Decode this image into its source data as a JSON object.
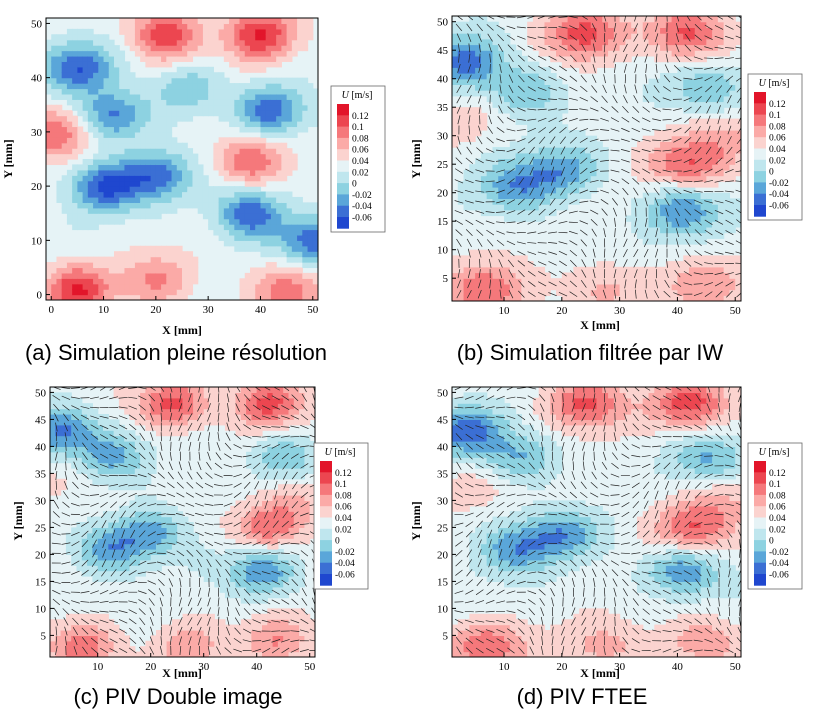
{
  "colorbar": {
    "title_italic": "U",
    "title_unit": " [m/s]",
    "levels": [
      "0.12",
      "0.1",
      "0.08",
      "0.06",
      "0.04",
      "0.02",
      "0",
      "-0.02",
      "-0.04",
      "-0.06"
    ],
    "colors": [
      "#e2152a",
      "#ec4650",
      "#f5787b",
      "#fbaaa7",
      "#fbd3cf",
      "#e6f3f6",
      "#bfe6ee",
      "#8dd2e1",
      "#5aa6d9",
      "#3b6fd4",
      "#1f47cf"
    ]
  },
  "chart_data": [
    {
      "type": "heatmap",
      "caption": "(a) Simulation pleine résolution",
      "xlabel": "X [mm]",
      "ylabel": "Y [mm]",
      "xlim": [
        -1,
        51
      ],
      "ylim": [
        -1,
        51
      ],
      "xticks": [
        "0",
        "10",
        "20",
        "30",
        "40",
        "50"
      ],
      "yticks": [
        "0",
        "10",
        "20",
        "30",
        "40",
        "50"
      ],
      "vectors": false,
      "features": [
        {
          "x": 22,
          "y": 48,
          "u": 0.12
        },
        {
          "x": 40,
          "y": 48,
          "u": 0.12
        },
        {
          "x": 5,
          "y": 1,
          "u": 0.12
        },
        {
          "x": 45,
          "y": 1,
          "u": 0.1
        },
        {
          "x": 38,
          "y": 25,
          "u": 0.1
        },
        {
          "x": 1,
          "y": 30,
          "u": 0.1
        },
        {
          "x": 20,
          "y": 3,
          "u": 0.08
        },
        {
          "x": 5,
          "y": 42,
          "u": -0.06
        },
        {
          "x": 12,
          "y": 33,
          "u": -0.05
        },
        {
          "x": 10,
          "y": 20,
          "u": -0.06
        },
        {
          "x": 20,
          "y": 22,
          "u": -0.05
        },
        {
          "x": 38,
          "y": 15,
          "u": -0.06
        },
        {
          "x": 50,
          "y": 10,
          "u": -0.05
        },
        {
          "x": 42,
          "y": 34,
          "u": -0.05
        },
        {
          "x": 26,
          "y": 38,
          "u": -0.02
        }
      ]
    },
    {
      "type": "heatmap",
      "caption": "(b) Simulation filtrée par IW",
      "xlabel": "X [mm]",
      "ylabel": "Y [mm]",
      "xlim": [
        1,
        51
      ],
      "ylim": [
        1,
        51
      ],
      "xticks": [
        "10",
        "20",
        "30",
        "40",
        "50"
      ],
      "yticks": [
        "5",
        "10",
        "15",
        "20",
        "25",
        "30",
        "35",
        "40",
        "45",
        "50"
      ],
      "vectors": true,
      "features": [
        {
          "x": 24,
          "y": 48,
          "u": 0.11
        },
        {
          "x": 42,
          "y": 48,
          "u": 0.11
        },
        {
          "x": 7,
          "y": 3,
          "u": 0.1
        },
        {
          "x": 27,
          "y": 3,
          "u": 0.07
        },
        {
          "x": 44,
          "y": 4,
          "u": 0.08
        },
        {
          "x": 42,
          "y": 25,
          "u": 0.1
        },
        {
          "x": 48,
          "y": 30,
          "u": 0.06
        },
        {
          "x": 3,
          "y": 33,
          "u": 0.05
        },
        {
          "x": 3,
          "y": 43,
          "u": -0.05
        },
        {
          "x": 12,
          "y": 21,
          "u": -0.03
        },
        {
          "x": 20,
          "y": 24,
          "u": -0.03
        },
        {
          "x": 41,
          "y": 17,
          "u": -0.04
        },
        {
          "x": 13,
          "y": 38,
          "u": -0.02
        },
        {
          "x": 45,
          "y": 38,
          "u": -0.02
        }
      ]
    },
    {
      "type": "heatmap",
      "caption": "(c) PIV Double image",
      "xlabel": "X [mm]",
      "ylabel": "Y [mm]",
      "xlim": [
        1,
        51
      ],
      "ylim": [
        1,
        51
      ],
      "xticks": [
        "10",
        "20",
        "30",
        "40",
        "50"
      ],
      "yticks": [
        "5",
        "10",
        "15",
        "20",
        "25",
        "30",
        "35",
        "40",
        "45",
        "50"
      ],
      "vectors": true,
      "features": [
        {
          "x": 24,
          "y": 48,
          "u": 0.11
        },
        {
          "x": 42,
          "y": 48,
          "u": 0.11
        },
        {
          "x": 7,
          "y": 3,
          "u": 0.1
        },
        {
          "x": 27,
          "y": 3,
          "u": 0.07
        },
        {
          "x": 44,
          "y": 4,
          "u": 0.08
        },
        {
          "x": 42,
          "y": 25,
          "u": 0.1
        },
        {
          "x": 48,
          "y": 30,
          "u": 0.06
        },
        {
          "x": 3,
          "y": 33,
          "u": 0.05
        },
        {
          "x": 3,
          "y": 43,
          "u": -0.05
        },
        {
          "x": 12,
          "y": 21,
          "u": -0.03
        },
        {
          "x": 20,
          "y": 24,
          "u": -0.03
        },
        {
          "x": 41,
          "y": 17,
          "u": -0.04
        },
        {
          "x": 13,
          "y": 38,
          "u": -0.02
        },
        {
          "x": 45,
          "y": 38,
          "u": -0.02
        }
      ]
    },
    {
      "type": "heatmap",
      "caption": "(d) PIV FTEE",
      "xlabel": "X [mm]",
      "ylabel": "Y [mm]",
      "xlim": [
        1,
        51
      ],
      "ylim": [
        1,
        51
      ],
      "xticks": [
        "10",
        "20",
        "30",
        "40",
        "50"
      ],
      "yticks": [
        "5",
        "10",
        "15",
        "20",
        "25",
        "30",
        "35",
        "40",
        "45",
        "50"
      ],
      "vectors": true,
      "features": [
        {
          "x": 24,
          "y": 48,
          "u": 0.11
        },
        {
          "x": 42,
          "y": 48,
          "u": 0.11
        },
        {
          "x": 7,
          "y": 3,
          "u": 0.1
        },
        {
          "x": 27,
          "y": 3,
          "u": 0.07
        },
        {
          "x": 44,
          "y": 4,
          "u": 0.08
        },
        {
          "x": 42,
          "y": 25,
          "u": 0.1
        },
        {
          "x": 48,
          "y": 30,
          "u": 0.06
        },
        {
          "x": 3,
          "y": 33,
          "u": 0.05
        },
        {
          "x": 3,
          "y": 43,
          "u": -0.05
        },
        {
          "x": 12,
          "y": 21,
          "u": -0.03
        },
        {
          "x": 20,
          "y": 24,
          "u": -0.03
        },
        {
          "x": 41,
          "y": 17,
          "u": -0.04
        },
        {
          "x": 13,
          "y": 38,
          "u": -0.02
        },
        {
          "x": 45,
          "y": 38,
          "u": -0.02
        }
      ]
    }
  ]
}
